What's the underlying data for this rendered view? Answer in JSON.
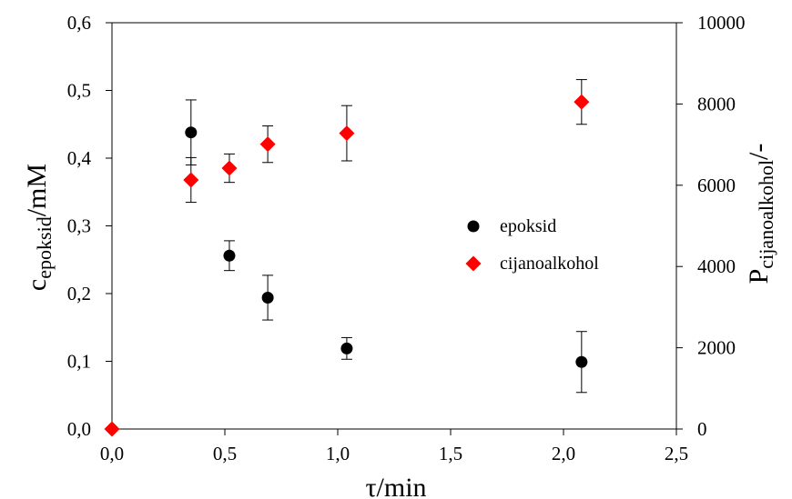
{
  "chart_data": {
    "type": "scatter",
    "x": {
      "label": "τ/min",
      "range": [
        0,
        2.5
      ],
      "ticks": [
        "0,0",
        "0,5",
        "1,0",
        "1,5",
        "2,0",
        "2,5"
      ],
      "tick_values": [
        0,
        0.5,
        1.0,
        1.5,
        2.0,
        2.5
      ]
    },
    "y_left": {
      "label_main": "c",
      "label_sub": "epoksid",
      "label_unit": "/mM",
      "range": [
        0,
        0.6
      ],
      "ticks": [
        "0,0",
        "0,1",
        "0,2",
        "0,3",
        "0,4",
        "0,5",
        "0,6"
      ],
      "tick_values": [
        0,
        0.1,
        0.2,
        0.3,
        0.4,
        0.5,
        0.6
      ]
    },
    "y_right": {
      "label_main": "P",
      "label_sub": "cijanoalkohol",
      "label_unit": "/-",
      "range": [
        0,
        10000
      ],
      "ticks": [
        "0",
        "2000",
        "4000",
        "6000",
        "8000",
        "10000"
      ],
      "tick_values": [
        0,
        2000,
        4000,
        6000,
        8000,
        10000
      ]
    },
    "series": [
      {
        "name": "epoksid",
        "axis": "left",
        "marker": "circle",
        "color": "#000000",
        "points": [
          {
            "x": 0.35,
            "y": 0.438,
            "err": 0.048
          },
          {
            "x": 0.52,
            "y": 0.256,
            "err": 0.022
          },
          {
            "x": 0.69,
            "y": 0.194,
            "err": 0.033
          },
          {
            "x": 1.04,
            "y": 0.119,
            "err": 0.016
          },
          {
            "x": 2.08,
            "y": 0.099,
            "err": 0.045
          }
        ]
      },
      {
        "name": "cijanoalkohol",
        "axis": "right",
        "marker": "diamond",
        "color": "#ff0000",
        "points": [
          {
            "x": 0.0,
            "y": 0,
            "err": 0
          },
          {
            "x": 0.35,
            "y": 6130,
            "err": 550
          },
          {
            "x": 0.52,
            "y": 6420,
            "err": 350
          },
          {
            "x": 0.69,
            "y": 7010,
            "err": 450
          },
          {
            "x": 1.04,
            "y": 7280,
            "err": 680
          },
          {
            "x": 2.08,
            "y": 8050,
            "err": 550
          }
        ]
      }
    ],
    "legend_position": "right-center",
    "grid": false
  }
}
